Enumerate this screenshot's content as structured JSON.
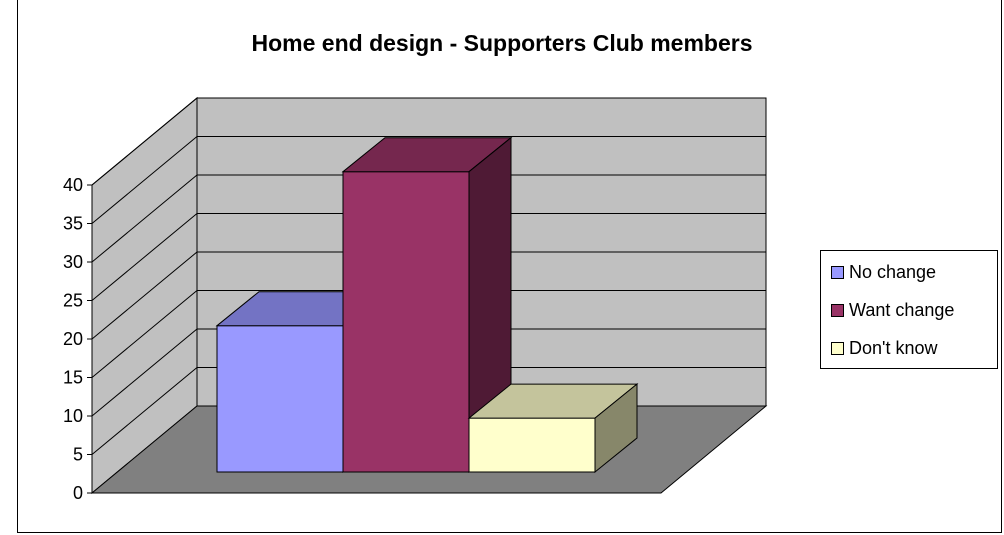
{
  "chart_data": {
    "type": "bar",
    "title": "Home end design - Supporters Club members",
    "categories": [
      "No change",
      "Want change",
      "Don't know"
    ],
    "values": [
      19,
      39,
      7
    ],
    "ylim": [
      0,
      40
    ],
    "yticks": [
      "0",
      "5",
      "10",
      "15",
      "20",
      "25",
      "30",
      "35",
      "40"
    ],
    "grid": true,
    "three_d": true,
    "legend_position": "right",
    "series": [
      {
        "name": "No change",
        "value": 19,
        "front": "#9999ff",
        "top": "#7373c4",
        "side": "#5b5b9a"
      },
      {
        "name": "Want change",
        "value": 39,
        "front": "#993366",
        "top": "#75274e",
        "side": "#4f1a35"
      },
      {
        "name": "Don't know",
        "value": 7,
        "front": "#ffffcc",
        "top": "#c4c49c",
        "side": "#87876a"
      }
    ],
    "colors": {
      "wall": "#c0c0c0",
      "floor": "#808080"
    }
  }
}
